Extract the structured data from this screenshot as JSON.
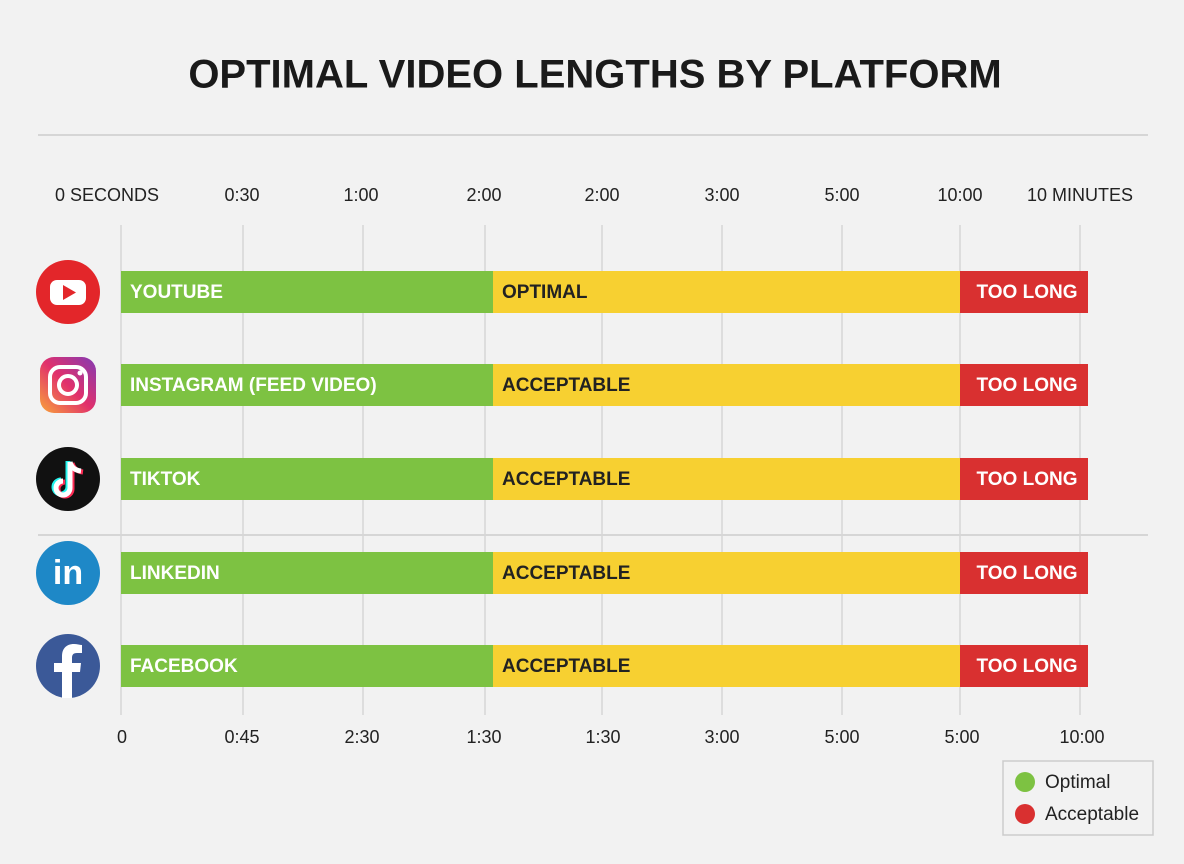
{
  "chart_data": {
    "type": "timeline",
    "title": "OPTIMAL VIDEO LENGTHS BY PLATFORM",
    "top_axis_labels": [
      "0 SECONDS",
      "0:30",
      "1:00",
      "2:00",
      "2:00",
      "3:00",
      "5:00",
      "10:00",
      "10 MINUTES"
    ],
    "bottom_axis_labels": [
      "0",
      "0:45",
      "2:30",
      "1:30",
      "1:30",
      "3:00",
      "5:00",
      "5:00",
      "10:00"
    ],
    "rows": [
      {
        "platform": "YOUTUBE",
        "middle": "OPTIMAL",
        "end": "TOO LONG"
      },
      {
        "platform": "INSTAGRAM (FEED VIDEO)",
        "middle": "ACCEPTABLE",
        "end": "TOO LONG"
      },
      {
        "platform": "TIKTOK",
        "middle": "ACCEPTABLE",
        "end": "TOO LONG"
      },
      {
        "platform": "LINKEDIN",
        "middle": "ACCEPTABLE",
        "end": "TOO LONG"
      },
      {
        "platform": "FACEBOOK",
        "middle": "ACCEPTABLE",
        "end": "TOO LONG"
      }
    ],
    "legend": [
      "Optimal",
      "Acceptable"
    ]
  }
}
